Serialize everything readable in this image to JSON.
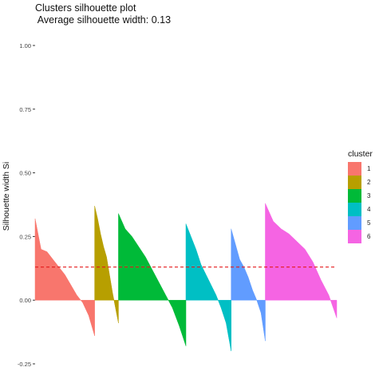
{
  "chart_data": {
    "type": "bar",
    "title": "Clusters silhouette plot",
    "subtitle": " Average silhouette width: 0.13",
    "ylabel": "Silhouette width Si",
    "xlabel": "",
    "ylim": [
      -0.25,
      1.0
    ],
    "yticks": [
      {
        "value": -0.25,
        "label": "-0.25"
      },
      {
        "value": 0.0,
        "label": "0.00"
      },
      {
        "value": 0.25,
        "label": "0.25"
      },
      {
        "value": 0.5,
        "label": "0.50"
      },
      {
        "value": 0.75,
        "label": "0.75"
      },
      {
        "value": 1.0,
        "label": "1.00"
      }
    ],
    "average_silhouette": 0.13,
    "average_line_color": "#e41a1c",
    "legend": {
      "title": "cluster",
      "position": "right"
    },
    "series": [
      {
        "name": "1",
        "color": "#F8766D",
        "count": 75,
        "values": [
          0.32,
          0.2,
          0.19,
          0.16,
          0.13,
          0.1,
          0.06,
          0.02,
          -0.01,
          -0.06,
          -0.14
        ]
      },
      {
        "name": "2",
        "color": "#B79F00",
        "count": 30,
        "values": [
          0.37,
          0.32,
          0.26,
          0.21,
          0.17,
          0.1,
          0.03,
          -0.03,
          -0.09
        ]
      },
      {
        "name": "3",
        "color": "#00BA38",
        "count": 85,
        "values": [
          0.34,
          0.28,
          0.25,
          0.21,
          0.17,
          0.12,
          0.07,
          0.02,
          -0.03,
          -0.1,
          -0.18
        ]
      },
      {
        "name": "4",
        "color": "#00BFC4",
        "count": 57,
        "values": [
          0.3,
          0.25,
          0.2,
          0.14,
          0.1,
          0.06,
          0.02,
          -0.03,
          -0.09,
          -0.2
        ]
      },
      {
        "name": "5",
        "color": "#619CFF",
        "count": 43,
        "values": [
          0.28,
          0.22,
          0.16,
          0.13,
          0.09,
          0.04,
          0.0,
          -0.05,
          -0.16
        ]
      },
      {
        "name": "6",
        "color": "#F564E3",
        "count": 90,
        "values": [
          0.38,
          0.31,
          0.28,
          0.26,
          0.23,
          0.2,
          0.15,
          0.08,
          0.02,
          -0.07
        ]
      }
    ]
  }
}
